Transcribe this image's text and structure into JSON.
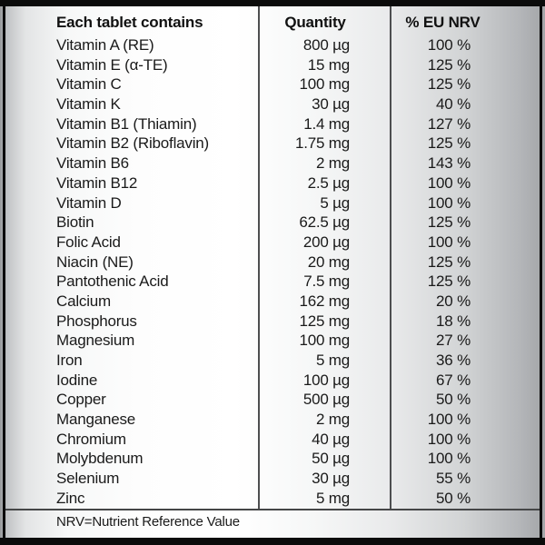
{
  "colors": {
    "frame": "#0b0b0b",
    "divider": "#4d4e50",
    "text": "#1a1a1a",
    "background_edge": "#a3a5a8",
    "background_center": "#ffffff"
  },
  "table": {
    "headers": {
      "contains": "Each tablet contains",
      "quantity": "Quantity",
      "nrv": "% EU NRV"
    },
    "rows": [
      {
        "name": "Vitamin A (RE)",
        "quantity": "800 µg",
        "nrv": "100 %"
      },
      {
        "name": "Vitamin E (α-TE)",
        "quantity": "15 mg",
        "nrv": "125 %"
      },
      {
        "name": "Vitamin C",
        "quantity": "100 mg",
        "nrv": "125 %"
      },
      {
        "name": "Vitamin K",
        "quantity": "30 µg",
        "nrv": "40 %"
      },
      {
        "name": "Vitamin B1 (Thiamin)",
        "quantity": "1.4 mg",
        "nrv": "127 %"
      },
      {
        "name": "Vitamin B2 (Riboflavin)",
        "quantity": "1.75 mg",
        "nrv": "125 %"
      },
      {
        "name": "Vitamin B6",
        "quantity": "2 mg",
        "nrv": "143 %"
      },
      {
        "name": "Vitamin B12",
        "quantity": "2.5 µg",
        "nrv": "100 %"
      },
      {
        "name": "Vitamin D",
        "quantity": "5 µg",
        "nrv": "100 %"
      },
      {
        "name": "Biotin",
        "quantity": "62.5 µg",
        "nrv": "125 %"
      },
      {
        "name": "Folic Acid",
        "quantity": "200 µg",
        "nrv": "100 %"
      },
      {
        "name": "Niacin (NE)",
        "quantity": "20 mg",
        "nrv": "125 %"
      },
      {
        "name": "Pantothenic Acid",
        "quantity": "7.5 mg",
        "nrv": "125 %"
      },
      {
        "name": "Calcium",
        "quantity": "162 mg",
        "nrv": "20 %"
      },
      {
        "name": "Phosphorus",
        "quantity": "125 mg",
        "nrv": "18 %"
      },
      {
        "name": "Magnesium",
        "quantity": "100 mg",
        "nrv": "27 %"
      },
      {
        "name": "Iron",
        "quantity": "5 mg",
        "nrv": "36 %"
      },
      {
        "name": "Iodine",
        "quantity": "100 µg",
        "nrv": "67 %"
      },
      {
        "name": "Copper",
        "quantity": "500 µg",
        "nrv": "50 %"
      },
      {
        "name": "Manganese",
        "quantity": "2 mg",
        "nrv": "100 %"
      },
      {
        "name": "Chromium",
        "quantity": "40 µg",
        "nrv": "100 %"
      },
      {
        "name": "Molybdenum",
        "quantity": "50 µg",
        "nrv": "100 %"
      },
      {
        "name": "Selenium",
        "quantity": "30 µg",
        "nrv": "55 %"
      },
      {
        "name": "Zinc",
        "quantity": "5 mg",
        "nrv": "50 %"
      }
    ],
    "footnote": "NRV=Nutrient Reference Value"
  }
}
